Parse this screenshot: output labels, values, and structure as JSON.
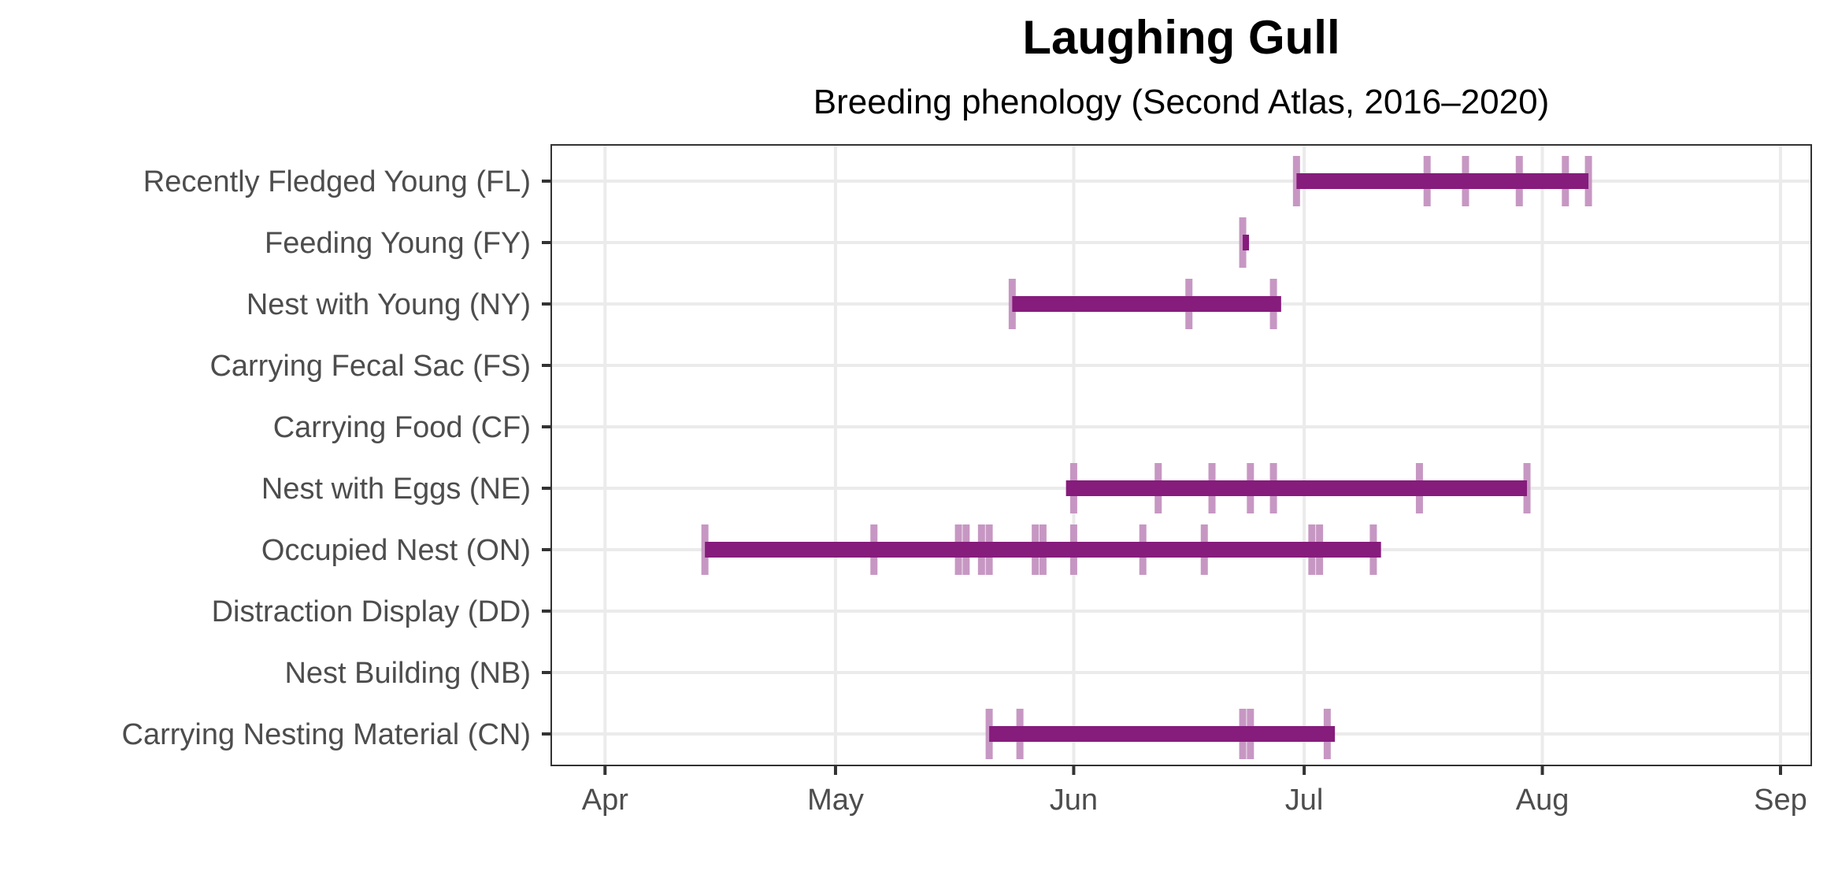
{
  "chart_data": {
    "type": "timeline",
    "title": "Laughing Gull",
    "subtitle": "Breeding phenology (Second Atlas, 2016–2020)",
    "xlabel": "",
    "ylabel": "",
    "x_range": [
      "2020-03-25",
      "2020-09-05"
    ],
    "grid": true,
    "x_ticks": [
      {
        "date": "2020-04-01",
        "label": "Apr"
      },
      {
        "date": "2020-05-01",
        "label": "May"
      },
      {
        "date": "2020-06-01",
        "label": "Jun"
      },
      {
        "date": "2020-07-01",
        "label": "Jul"
      },
      {
        "date": "2020-08-01",
        "label": "Aug"
      },
      {
        "date": "2020-09-01",
        "label": "Sep"
      }
    ],
    "categories": [
      "Recently Fledged Young (FL)",
      "Feeding Young (FY)",
      "Nest with Young (NY)",
      "Carrying Fecal Sac (FS)",
      "Carrying Food (CF)",
      "Nest with Eggs (NE)",
      "Occupied Nest (ON)",
      "Distraction Display (DD)",
      "Nest Building (NB)",
      "Carrying Nesting Material (CN)"
    ],
    "series": [
      {
        "category": "Recently Fledged Young (FL)",
        "start": "2020-06-30",
        "end": "2020-08-07",
        "observations": [
          "2020-06-30",
          "2020-07-17",
          "2020-07-22",
          "2020-07-29",
          "2020-08-04",
          "2020-08-07"
        ]
      },
      {
        "category": "Feeding Young (FY)",
        "start": "2020-06-23",
        "end": "2020-06-23",
        "observations": [
          "2020-06-23"
        ]
      },
      {
        "category": "Nest with Young (NY)",
        "start": "2020-05-24",
        "end": "2020-06-28",
        "observations": [
          "2020-05-24",
          "2020-06-16",
          "2020-06-27"
        ]
      },
      {
        "category": "Carrying Fecal Sac (FS)",
        "start": null,
        "end": null,
        "observations": []
      },
      {
        "category": "Carrying Food (CF)",
        "start": null,
        "end": null,
        "observations": []
      },
      {
        "category": "Nest with Eggs (NE)",
        "start": "2020-05-31",
        "end": "2020-07-30",
        "observations": [
          "2020-06-01",
          "2020-06-12",
          "2020-06-19",
          "2020-06-24",
          "2020-06-27",
          "2020-07-16",
          "2020-07-30"
        ]
      },
      {
        "category": "Occupied Nest (ON)",
        "start": "2020-04-14",
        "end": "2020-07-11",
        "observations": [
          "2020-04-14",
          "2020-05-06",
          "2020-05-17",
          "2020-05-18",
          "2020-05-20",
          "2020-05-21",
          "2020-05-27",
          "2020-05-28",
          "2020-06-01",
          "2020-06-10",
          "2020-06-18",
          "2020-07-02",
          "2020-07-03",
          "2020-07-10"
        ]
      },
      {
        "category": "Distraction Display (DD)",
        "start": null,
        "end": null,
        "observations": []
      },
      {
        "category": "Nest Building (NB)",
        "start": null,
        "end": null,
        "observations": []
      },
      {
        "category": "Carrying Nesting Material (CN)",
        "start": "2020-05-21",
        "end": "2020-07-05",
        "observations": [
          "2020-05-21",
          "2020-05-25",
          "2020-06-23",
          "2020-06-24",
          "2020-07-04"
        ]
      }
    ],
    "colors": {
      "bar": "#861c7c",
      "tick": "#c491c0",
      "grid": "#ebebeb",
      "panel_border": "#333333",
      "axis_tick": "#333333"
    }
  }
}
